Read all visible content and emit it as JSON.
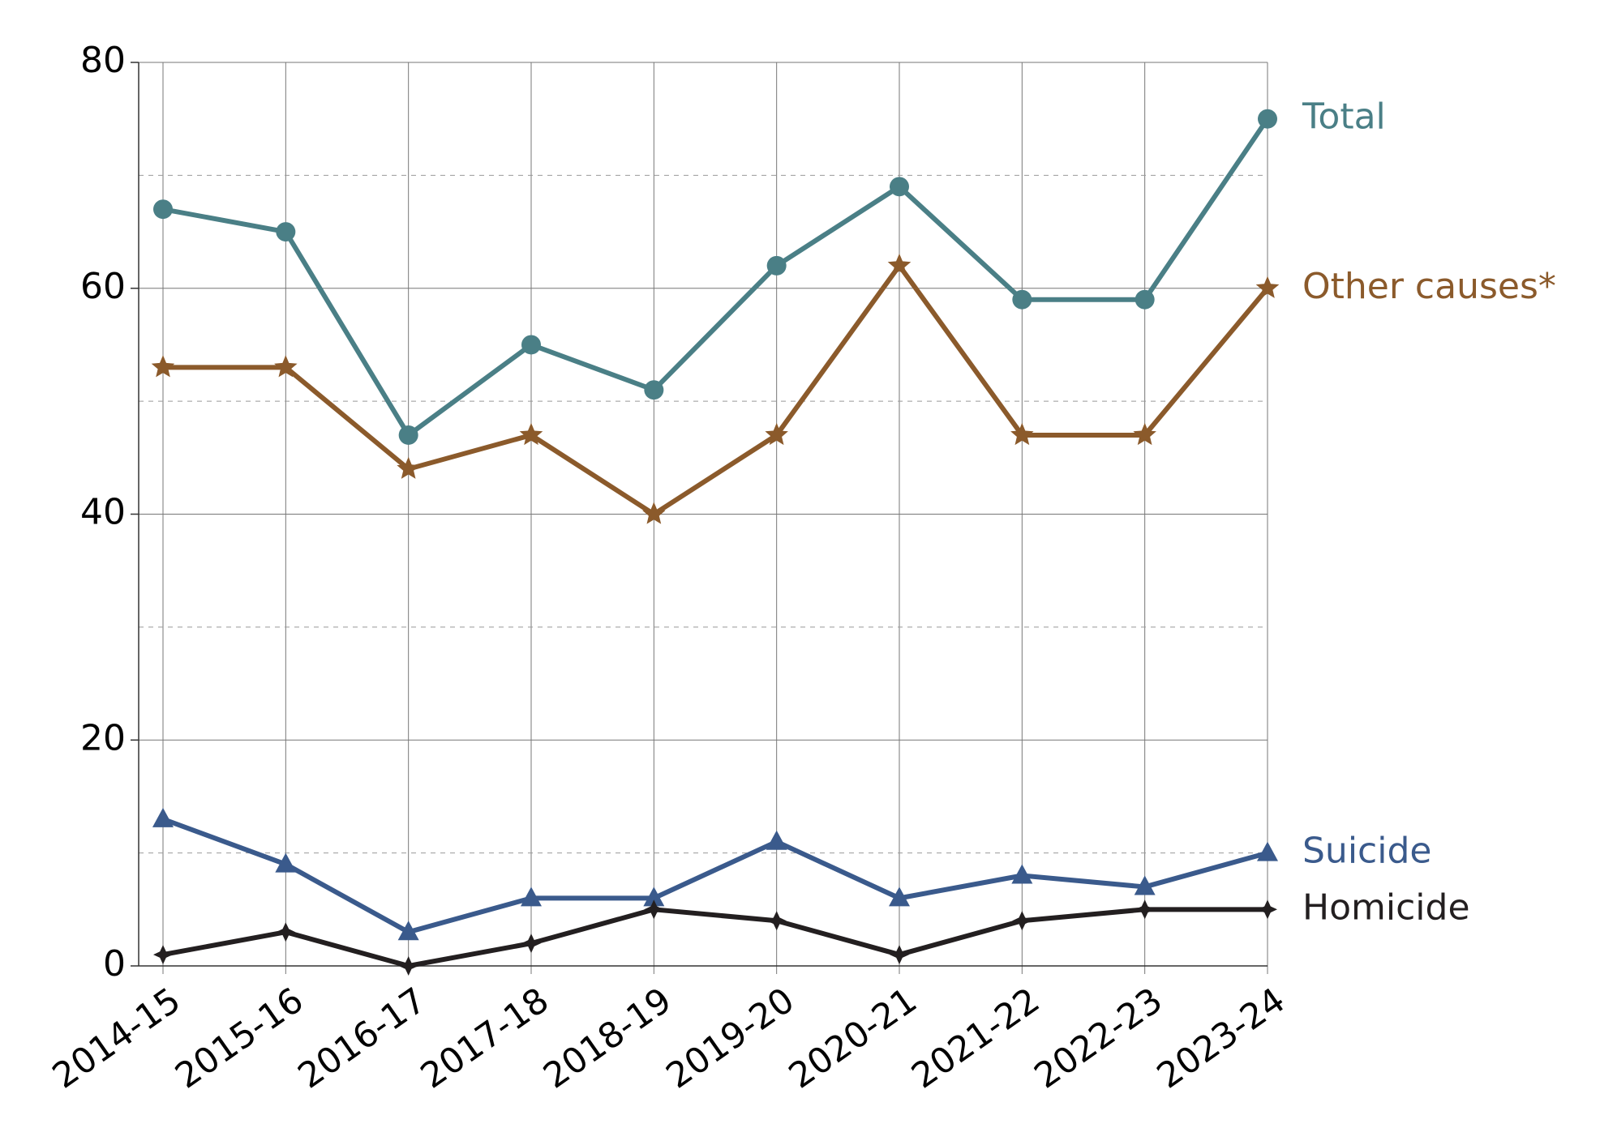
{
  "chart_data": {
    "type": "line",
    "categories": [
      "2014-15",
      "2015-16",
      "2016-17",
      "2017-18",
      "2018-19",
      "2019-20",
      "2020-21",
      "2021-22",
      "2022-23",
      "2023-24"
    ],
    "series": [
      {
        "name": "Total",
        "color": "#4a7f86",
        "marker": "circle",
        "values": [
          67,
          65,
          47,
          55,
          51,
          62,
          69,
          59,
          59,
          75
        ]
      },
      {
        "name": "Other causes*",
        "color": "#8b5a2b",
        "marker": "star",
        "values": [
          53,
          53,
          44,
          47,
          40,
          47,
          62,
          47,
          47,
          60
        ]
      },
      {
        "name": "Suicide",
        "color": "#3a5a8c",
        "marker": "triangle",
        "values": [
          13,
          9,
          3,
          6,
          6,
          11,
          6,
          8,
          7,
          10
        ]
      },
      {
        "name": "Homicide",
        "color": "#231f20",
        "marker": "diamond",
        "values": [
          1,
          3,
          0,
          2,
          5,
          4,
          1,
          4,
          5,
          5
        ]
      }
    ],
    "ylim": [
      0,
      80
    ],
    "yticks": [
      0,
      20,
      40,
      60,
      80
    ],
    "minor_yticks": [
      10,
      30,
      50,
      70
    ],
    "grid": true
  }
}
